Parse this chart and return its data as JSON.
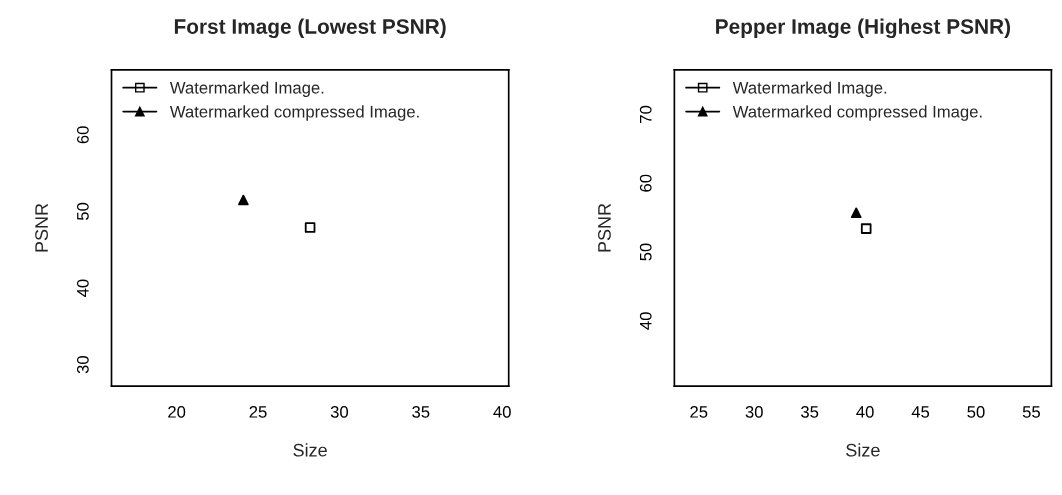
{
  "chart_data": [
    {
      "type": "scatter",
      "title": "Forst Image (Lowest PSNR)",
      "xlabel": "Size",
      "ylabel": "PSNR",
      "xlim": [
        16.0,
        40.4
      ],
      "ylim": [
        27.2,
        68.5
      ],
      "xticks": [
        20,
        25,
        30,
        35,
        40
      ],
      "yticks": [
        30,
        40,
        50,
        60
      ],
      "grid": false,
      "legend": "top left",
      "series": [
        {
          "name": "Watermarked Image.",
          "color": "#000000",
          "marker": "square",
          "x": [
            28.2
          ],
          "values": [
            47.9
          ]
        },
        {
          "name": "Watermarked compressed Image.",
          "color": "#000000",
          "marker": "triangle",
          "x": [
            24.1
          ],
          "values": [
            51.5
          ]
        }
      ]
    },
    {
      "type": "scatter",
      "title": "Pepper Image (Highest PSNR)",
      "xlabel": "Size",
      "ylabel": "PSNR",
      "xlim": [
        22.8,
        56.8
      ],
      "ylim": [
        30.5,
        76.5
      ],
      "xticks": [
        25,
        30,
        35,
        40,
        45,
        50,
        55
      ],
      "yticks": [
        40,
        50,
        60,
        70
      ],
      "grid": false,
      "legend": "top left",
      "series": [
        {
          "name": "Watermarked Image.",
          "color": "#000000",
          "marker": "square",
          "x": [
            40.1
          ],
          "values": [
            53.4
          ]
        },
        {
          "name": "Watermarked compressed Image.",
          "color": "#000000",
          "marker": "triangle",
          "x": [
            39.2
          ],
          "values": [
            55.7
          ]
        }
      ]
    }
  ]
}
